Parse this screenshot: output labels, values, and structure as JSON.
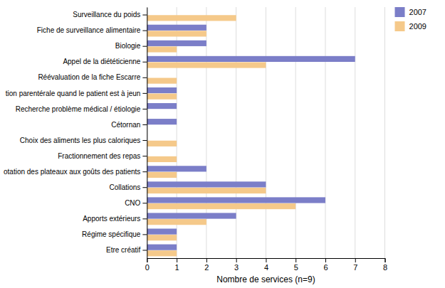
{
  "chart_data": {
    "type": "bar",
    "orientation": "horizontal",
    "categories": [
      "Surveillance du poids",
      "Fiche de surveillance alimentaire",
      "Biologie",
      "Appel de la diététicienne",
      "Réévaluation de la fiche Escarre",
      "tion parentérale quand le patient est à jeun",
      "Recherche problème médical / étiologie",
      "Cétornan",
      "Choix des aliments les plus caloriques",
      "Fractionnement des repas",
      "otation des plateaux aux goûts des patients",
      "Collations",
      "CNO",
      "Apports extérieurs",
      "Régime spécifique",
      "Etre créatif"
    ],
    "series": [
      {
        "name": "2007",
        "color": "#7B7EC8",
        "values": [
          0,
          2,
          2,
          7,
          0,
          1,
          1,
          1,
          0,
          0,
          2,
          4,
          6,
          3,
          1,
          1
        ]
      },
      {
        "name": "2009",
        "color": "#F5C98A",
        "values": [
          3,
          2,
          1,
          4,
          1,
          1,
          0,
          0,
          1,
          1,
          1,
          4,
          5,
          2,
          1,
          1
        ]
      }
    ],
    "xlabel": "Nombre de services (n=9)",
    "xlim": [
      0,
      8
    ],
    "xticks": [
      0,
      1,
      2,
      3,
      4,
      5,
      6,
      7,
      8
    ],
    "grid": true,
    "legend": "right"
  }
}
